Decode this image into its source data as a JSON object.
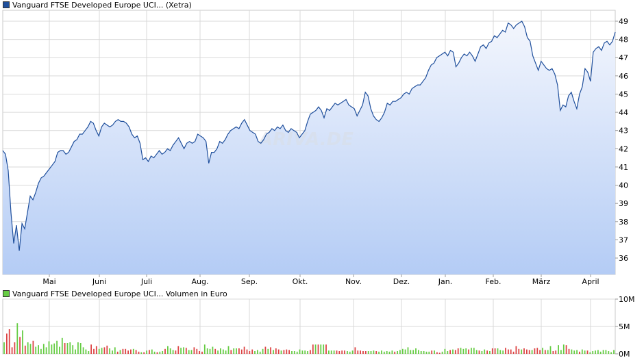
{
  "colors": {
    "price_line": "#1f4f9c",
    "area_top": "#f3f6fd",
    "area_bottom": "#b4ccf5",
    "grid": "#d9d9d9",
    "vol_up": "#66cc44",
    "vol_down": "#dd4444",
    "legend_price": "#1f4f9c",
    "legend_volume": "#66cc44"
  },
  "watermark": "ARIVA.DE",
  "chart_data": [
    {
      "type": "area",
      "legend": "Vanguard FTSE Developed Europe UCI... (Xetra)",
      "ylim": [
        35.1,
        49.6
      ],
      "yticks": [
        36,
        37,
        38,
        39,
        40,
        41,
        42,
        43,
        44,
        45,
        46,
        47,
        48,
        49
      ],
      "xlabels": [
        "Mai",
        "Juni",
        "Juli",
        "Aug.",
        "Sep.",
        "Okt.",
        "Nov.",
        "Dez.",
        "Jan.",
        "Feb.",
        "März",
        "April"
      ],
      "grid": true,
      "series": [
        {
          "values": [
            41.9,
            41.7,
            40.8,
            38.5,
            36.8,
            37.8,
            36.4,
            37.9,
            37.6,
            38.5,
            39.4,
            39.2,
            39.6,
            40.1,
            40.4,
            40.5,
            40.7,
            40.9,
            41.1,
            41.3,
            41.8,
            41.9,
            41.9,
            41.7,
            41.8,
            42.1,
            42.4,
            42.5,
            42.8,
            42.8,
            43.0,
            43.2,
            43.5,
            43.4,
            43.0,
            42.7,
            43.2,
            43.4,
            43.3,
            43.2,
            43.3,
            43.5,
            43.6,
            43.5,
            43.5,
            43.4,
            43.2,
            42.8,
            42.6,
            42.7,
            42.3,
            41.4,
            41.5,
            41.3,
            41.6,
            41.5,
            41.7,
            41.9,
            41.7,
            41.8,
            42.0,
            41.9,
            42.2,
            42.4,
            42.6,
            42.3,
            42.0,
            42.3,
            42.4,
            42.3,
            42.4,
            42.8,
            42.7,
            42.6,
            42.4,
            41.2,
            41.8,
            41.8,
            42.0,
            42.4,
            42.3,
            42.5,
            42.8,
            43.0,
            43.1,
            43.2,
            43.1,
            43.4,
            43.6,
            43.3,
            43.0,
            42.9,
            42.8,
            42.4,
            42.3,
            42.5,
            42.8,
            42.9,
            43.1,
            43.0,
            43.2,
            43.1,
            43.3,
            43.0,
            42.9,
            43.1,
            43.0,
            42.9,
            42.6,
            42.8,
            43.0,
            43.5,
            43.9,
            44.0,
            44.1,
            44.3,
            44.1,
            43.7,
            44.2,
            44.1,
            44.3,
            44.5,
            44.4,
            44.5,
            44.6,
            44.7,
            44.4,
            44.3,
            44.2,
            43.8,
            44.1,
            44.4,
            45.1,
            44.9,
            44.2,
            43.8,
            43.6,
            43.5,
            43.7,
            44.0,
            44.5,
            44.4,
            44.6,
            44.6,
            44.7,
            44.8,
            45.0,
            45.1,
            45.0,
            45.3,
            45.4,
            45.5,
            45.5,
            45.7,
            45.9,
            46.3,
            46.6,
            46.7,
            47.0,
            47.1,
            47.2,
            47.3,
            47.1,
            47.4,
            47.3,
            46.5,
            46.7,
            47.0,
            47.2,
            47.1,
            47.3,
            47.1,
            46.8,
            47.2,
            47.6,
            47.7,
            47.5,
            47.8,
            47.9,
            48.2,
            48.1,
            48.3,
            48.5,
            48.4,
            48.9,
            48.8,
            48.6,
            48.8,
            48.9,
            49.0,
            48.7,
            48.1,
            47.9,
            47.1,
            46.7,
            46.3,
            46.8,
            46.6,
            46.4,
            46.3,
            46.4,
            46.1,
            45.5,
            44.1,
            44.4,
            44.3,
            44.9,
            45.1,
            44.6,
            44.2,
            45.0,
            45.4,
            46.4,
            46.2,
            45.7,
            47.3,
            47.5,
            47.6,
            47.4,
            47.8,
            47.9,
            47.7,
            47.9,
            48.4
          ]
        }
      ]
    },
    {
      "type": "bar",
      "legend": "Vanguard FTSE Developed Europe UCI... Volumen in Euro",
      "ylim": [
        0,
        10
      ],
      "yticks": [
        "0M",
        "5M",
        "10M"
      ],
      "values": [
        2.1,
        3.7,
        4.5,
        1.2,
        2.1,
        5.6,
        3.1,
        4.3,
        1.5,
        2.1,
        1.8,
        2.4,
        1.3,
        1.6,
        0.9,
        1.8,
        1.2,
        2.3,
        1.7,
        1.9,
        2.4,
        1.3,
        2.9,
        2.0,
        2.0,
        2.1,
        1.6,
        0.8,
        2.1,
        2.0,
        1.2,
        0.8,
        0.5,
        1.7,
        0.9,
        1.4,
        0.9,
        1.1,
        1.2,
        1.5,
        1.0,
        0.6,
        1.2,
        0.4,
        0.7,
        0.9,
        0.9,
        0.6,
        0.8,
        0.9,
        0.7,
        0.4,
        0.3,
        0.3,
        0.6,
        0.7,
        0.8,
        0.4,
        0.3,
        0.4,
        0.5,
        0.9,
        1.4,
        1.0,
        0.7,
        0.6,
        1.4,
        1.1,
        1.2,
        1.1,
        0.7,
        0.7,
        1.2,
        0.9,
        0.5,
        0.4,
        1.7,
        1.0,
        0.9,
        1.3,
        0.9,
        0.6,
        1.0,
        0.8,
        0.6,
        1.4,
        0.7,
        1.0,
        1.0,
        1.0,
        0.8,
        1.3,
        0.8,
        0.5,
        0.8,
        0.5,
        0.7,
        0.4,
        0.9,
        1.3,
        0.9,
        1.2,
        0.7,
        1.0,
        0.8,
        0.6,
        0.7,
        0.8,
        0.7,
        0.5,
        0.5,
        0.4,
        0.8,
        0.6,
        0.6,
        0.5,
        0.7,
        1.7,
        1.7,
        1.7,
        1.7,
        1.7,
        1.7,
        0.6,
        0.6,
        0.6,
        0.6,
        0.5,
        0.6,
        0.6,
        0.5,
        0.4,
        0.6,
        1.2,
        0.6,
        0.6,
        0.5,
        0.5,
        0.5,
        0.5,
        0.6,
        0.5,
        0.4,
        0.6,
        0.4,
        0.5,
        0.4,
        0.6,
        0.4,
        0.5,
        0.7,
        0.9,
        0.8,
        1.2,
        0.7,
        0.7,
        1.0,
        0.7,
        0.5,
        0.5,
        0.4,
        0.4,
        0.6,
        0.6,
        0.3,
        0.2,
        0.4,
        0.9,
        0.5,
        0.7,
        0.8,
        0.7,
        1.0,
        1.1,
        0.9,
        1.0,
        0.8,
        1.1,
        1.1,
        0.7,
        0.6,
        0.5,
        0.8,
        0.6,
        0.5,
        1.0,
        1.0,
        1.0,
        0.7,
        0.6,
        1.1,
        0.8,
        0.8,
        0.4,
        1.4,
        0.9,
        0.8,
        1.0,
        0.8,
        0.7,
        0.7,
        1.0,
        1.1,
        0.7,
        1.1,
        0.7,
        0.7,
        1.4,
        0.5,
        0.6,
        1.6,
        0.7,
        1.7,
        1.6,
        0.9,
        0.8,
        0.6,
        0.7,
        0.4,
        0.8,
        0.6,
        0.6,
        0.3,
        0.5,
        0.6,
        0.7,
        0.4,
        0.7,
        0.7,
        0.5,
        0.3,
        0.7
      ]
    }
  ]
}
